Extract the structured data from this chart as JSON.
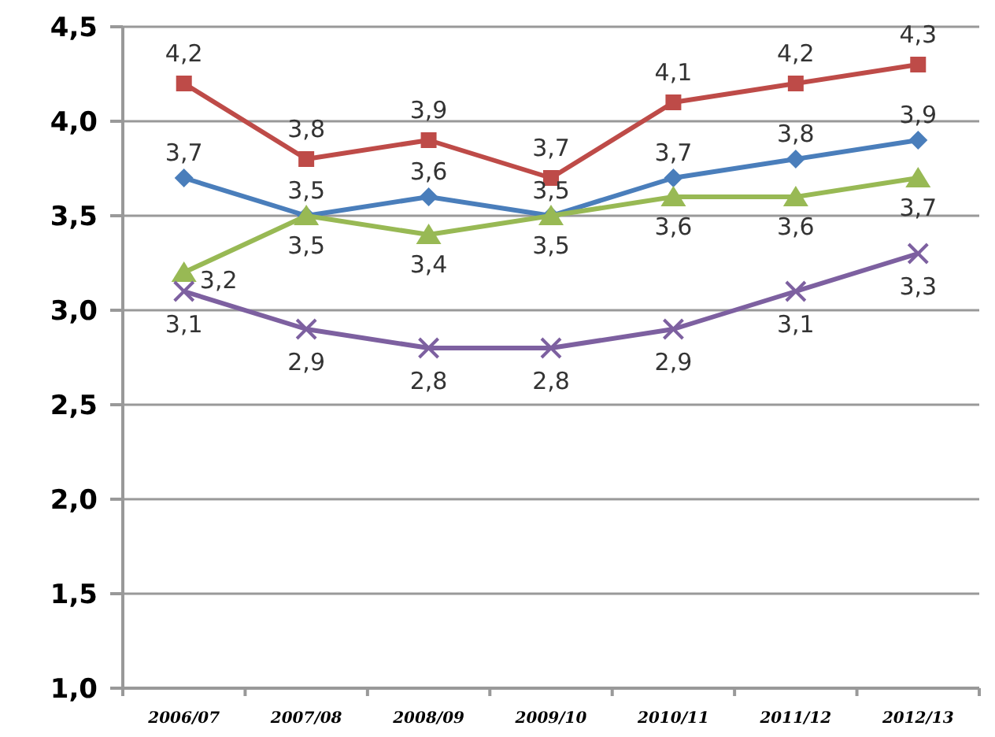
{
  "chart_data": {
    "type": "line",
    "categories": [
      "2006/07",
      "2007/08",
      "2008/09",
      "2009/10",
      "2010/11",
      "2011/12",
      "2012/13"
    ],
    "series": [
      {
        "color": "#be4b48",
        "marker": "square",
        "values": [
          4.2,
          3.8,
          3.9,
          3.7,
          4.1,
          4.2,
          4.3
        ],
        "value_labels": [
          "4,2",
          "3,8",
          "3,9",
          "3,7",
          "4,1",
          "4,2",
          "4,3"
        ]
      },
      {
        "color": "#4a7ebb",
        "marker": "diamond",
        "values": [
          3.7,
          3.5,
          3.6,
          3.5,
          3.7,
          3.8,
          3.9
        ],
        "value_labels": [
          "3,7",
          "3,5",
          "3,6",
          "3,5",
          "3,7",
          "3,8",
          "3,9"
        ]
      },
      {
        "color": "#98b954",
        "marker": "triangle",
        "values": [
          3.2,
          3.5,
          3.4,
          3.5,
          3.6,
          3.6,
          3.7
        ],
        "value_labels": [
          "3,2",
          "3,5",
          "3,4",
          "3,5",
          "3,6",
          "3,6",
          "3,7"
        ]
      },
      {
        "color": "#7d60a0",
        "marker": "cross",
        "values": [
          3.1,
          2.9,
          2.8,
          2.8,
          2.9,
          3.1,
          3.3
        ],
        "value_labels": [
          "3,1",
          "2,9",
          "2,8",
          "2,8",
          "2,9",
          "3,1",
          "3,3"
        ]
      }
    ],
    "ylim": [
      1.0,
      4.5
    ],
    "yticks": [
      {
        "value": 1.0,
        "label": "1,0"
      },
      {
        "value": 1.5,
        "label": "1,5"
      },
      {
        "value": 2.0,
        "label": "2,0"
      },
      {
        "value": 2.5,
        "label": "2,5"
      },
      {
        "value": 3.0,
        "label": "3,0"
      },
      {
        "value": 3.5,
        "label": "3,5"
      },
      {
        "value": 4.0,
        "label": "4,0"
      },
      {
        "value": 4.5,
        "label": "4,5"
      }
    ],
    "grid": "y",
    "line_style": "solid"
  }
}
